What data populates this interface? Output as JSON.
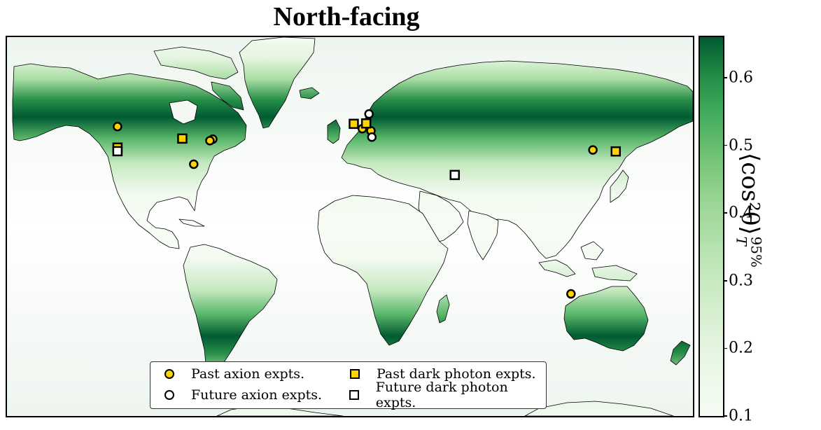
{
  "chart_data": {
    "type": "heatmap",
    "title": "North-facing",
    "colorbar": {
      "label_math": "⟨cos²θ⟩",
      "label_sub": "T",
      "label_sup": "95%",
      "ticks": [
        "0.1",
        "0.2",
        "0.3",
        "0.4",
        "0.5",
        "0.6"
      ],
      "tick_values": [
        0.1,
        0.2,
        0.3,
        0.4,
        0.5,
        0.6
      ],
      "range": [
        0.1,
        0.66
      ],
      "colormap": "Greens"
    },
    "map_projection": "equirectangular",
    "lon_range": [
      -180,
      180
    ],
    "lat_range": [
      -90,
      90
    ],
    "field_profile_by_latitude": [
      {
        "lat": 90,
        "value": 0.12
      },
      {
        "lat": 80,
        "value": 0.2
      },
      {
        "lat": 70,
        "value": 0.38
      },
      {
        "lat": 60,
        "value": 0.6
      },
      {
        "lat": 52,
        "value": 0.66
      },
      {
        "lat": 42,
        "value": 0.52
      },
      {
        "lat": 30,
        "value": 0.3
      },
      {
        "lat": 15,
        "value": 0.12
      },
      {
        "lat": 0,
        "value": 0.1
      },
      {
        "lat": -15,
        "value": 0.12
      },
      {
        "lat": -30,
        "value": 0.3
      },
      {
        "lat": -42,
        "value": 0.52
      },
      {
        "lat": -52,
        "value": 0.66
      },
      {
        "lat": -60,
        "value": 0.6
      },
      {
        "lat": -70,
        "value": 0.38
      },
      {
        "lat": -80,
        "value": 0.2
      },
      {
        "lat": -90,
        "value": 0.12
      }
    ],
    "series": [
      {
        "name": "Past axion expts.",
        "marker": "circle",
        "fill": "#FFD300",
        "points": [
          {
            "lon": -122,
            "lat": 47.5
          },
          {
            "lon": -72,
            "lat": 41.5
          },
          {
            "lon": -73.5,
            "lat": 40.8
          },
          {
            "lon": -82,
            "lat": 29.6
          },
          {
            "lon": 6.5,
            "lat": 46.5
          },
          {
            "lon": 11,
            "lat": 45.5
          },
          {
            "lon": 127.5,
            "lat": 36.4
          },
          {
            "lon": 116,
            "lat": -32
          }
        ]
      },
      {
        "name": "Future axion expts.",
        "marker": "circle",
        "fill": "#FFFFFF",
        "points": [
          {
            "lon": 10,
            "lat": 53.5
          },
          {
            "lon": 11.5,
            "lat": 42.5
          }
        ]
      },
      {
        "name": "Past dark photon expts.",
        "marker": "square",
        "fill": "#FFD300",
        "points": [
          {
            "lon": -122,
            "lat": 37.5
          },
          {
            "lon": -88,
            "lat": 41.8
          },
          {
            "lon": 2,
            "lat": 48.8
          },
          {
            "lon": 8.5,
            "lat": 49
          },
          {
            "lon": 139.5,
            "lat": 35.7
          }
        ]
      },
      {
        "name": "Future dark photon expts.",
        "marker": "square",
        "fill": "#FFFFFF",
        "points": [
          {
            "lon": -122,
            "lat": 35.8
          },
          {
            "lon": 55,
            "lat": 24.5
          }
        ]
      }
    ],
    "legend_position": "lower-center",
    "grid": false
  },
  "colors": {
    "land_stroke": "#000000",
    "marker_stroke": "#000000"
  }
}
